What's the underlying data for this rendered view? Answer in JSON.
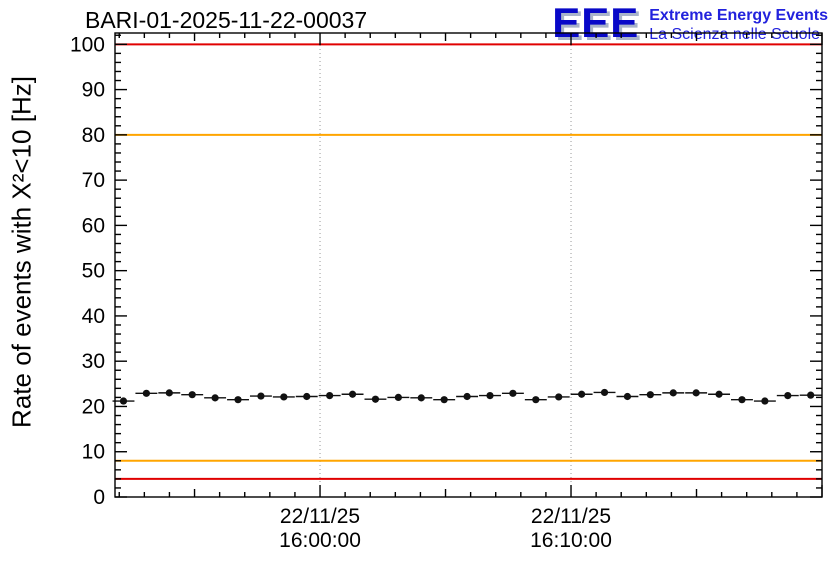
{
  "header": {
    "title": "BARI-01-2025-11-22-00037",
    "logo_text": "EEE",
    "logo_line1": "Extreme Energy Events",
    "logo_line2": "La Scienza nelle Scuole",
    "logo_color": "#0808c8"
  },
  "chart_data": {
    "type": "scatter",
    "title": "BARI-01-2025-11-22-00037",
    "xlabel": "",
    "ylabel": "Rate of events with X²<10 [Hz]",
    "ylim": [
      0,
      102.5
    ],
    "yticks": [
      0,
      10,
      20,
      30,
      40,
      50,
      60,
      70,
      80,
      90,
      100
    ],
    "y_minor_step": 2,
    "grid": "dotted vertical lines at labeled time ticks",
    "legend_position": "none",
    "x_axis": {
      "anchor": 0.29,
      "minute_step": 0.0355
    },
    "x_tick_labels": [
      {
        "pos": 0.29,
        "date": "22/11/25",
        "time": "16:00:00"
      },
      {
        "pos": 0.645,
        "date": "22/11/25",
        "time": "16:10:00"
      }
    ],
    "reference_lines": [
      {
        "y": 100,
        "color": "#e00000"
      },
      {
        "y": 80,
        "color": "#ffa500"
      },
      {
        "y": 8,
        "color": "#ffa500"
      },
      {
        "y": 4,
        "color": "#e00000"
      }
    ],
    "series": [
      {
        "name": "rate",
        "marker": "circle",
        "color": "#111111",
        "x_frac": [
          0.012,
          0.0444,
          0.0768,
          0.1092,
          0.1416,
          0.174,
          0.2064,
          0.2388,
          0.2712,
          0.3036,
          0.336,
          0.3684,
          0.4008,
          0.4332,
          0.4656,
          0.498,
          0.5304,
          0.5628,
          0.5952,
          0.6276,
          0.66,
          0.6924,
          0.7248,
          0.7572,
          0.7896,
          0.822,
          0.8544,
          0.8868,
          0.9192,
          0.9516,
          0.984
        ],
        "y": [
          21.2,
          22.9,
          23.0,
          22.6,
          21.9,
          21.5,
          22.3,
          22.1,
          22.2,
          22.4,
          22.7,
          21.6,
          22.0,
          21.9,
          21.5,
          22.2,
          22.4,
          22.9,
          21.5,
          22.1,
          22.7,
          23.1,
          22.2,
          22.6,
          23.0,
          23.0,
          22.7,
          21.5,
          21.2,
          22.4,
          22.5
        ],
        "xerr_frac": 0.0155,
        "yerr": 0.55
      }
    ]
  }
}
